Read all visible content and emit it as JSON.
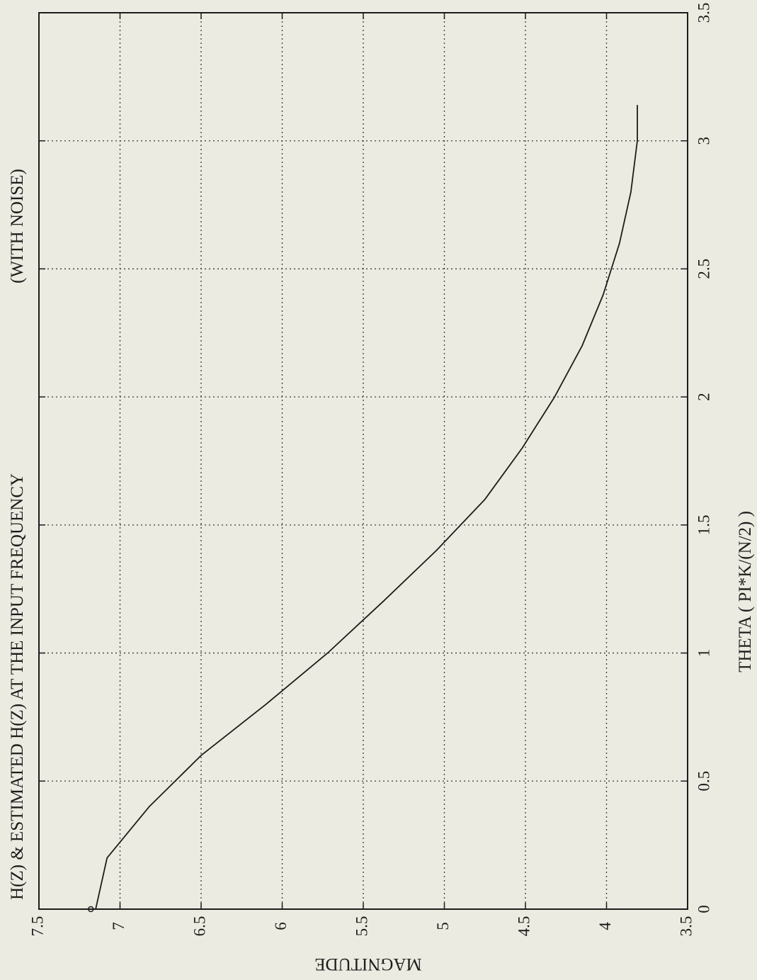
{
  "chart_data": {
    "type": "line",
    "title": "H(Z) & ESTIMATED H(Z) AT THE INPUT FREQUENCY",
    "subtitle": "(WITH NOISE)",
    "xlabel": "THETA  ( PI*K/(N/2) )",
    "ylabel": "MAGNITUDE",
    "xlim": [
      0,
      3.5
    ],
    "ylim": [
      3.5,
      7.5
    ],
    "x_ticks": [
      "0",
      "0.5",
      "1",
      "1.5",
      "2",
      "2.5",
      "3",
      "3.5"
    ],
    "y_ticks": [
      "3.5",
      "4",
      "4.5",
      "5",
      "5.5",
      "6",
      "6.5",
      "7",
      "7.5"
    ],
    "grid": true,
    "orientation": "rotated 90° counter-clockwise on the page",
    "series": [
      {
        "x": [
          0,
          0.2,
          0.4,
          0.6,
          0.8,
          1.0,
          1.2,
          1.4,
          1.6,
          1.8,
          2.0,
          2.2,
          2.4,
          2.6,
          2.8,
          3.0,
          3.14
        ],
        "y": [
          7.15,
          7.08,
          6.82,
          6.5,
          6.1,
          5.72,
          5.38,
          5.05,
          4.75,
          4.52,
          4.32,
          4.15,
          4.02,
          3.92,
          3.85,
          3.81,
          3.81
        ]
      }
    ],
    "markers": [
      {
        "x": 0,
        "y": 7.18,
        "shape": "circle"
      }
    ]
  }
}
